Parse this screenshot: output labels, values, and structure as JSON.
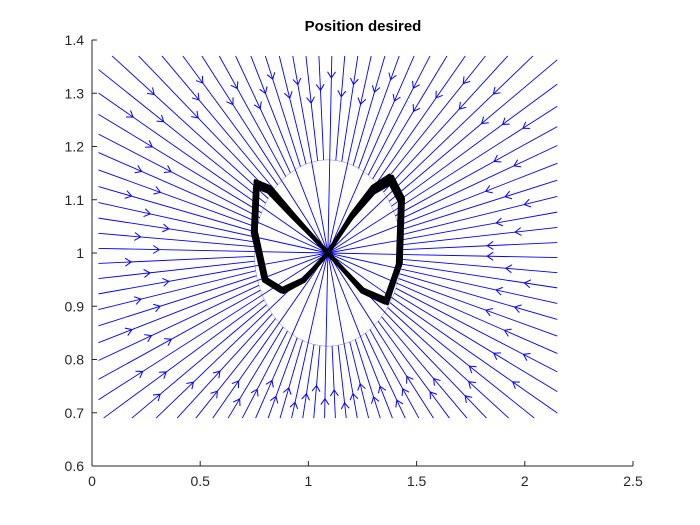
{
  "chart_data": {
    "type": "line",
    "title": "Position desired",
    "xlabel": "",
    "ylabel": "",
    "xlim": [
      0,
      2.5
    ],
    "ylim": [
      0.6,
      1.4
    ],
    "x_ticks": [
      "0",
      "0.5",
      "1",
      "1.5",
      "2",
      "2.5"
    ],
    "y_ticks": [
      "0.6",
      "0.7",
      "0.8",
      "0.9",
      "1",
      "1.1",
      "1.2",
      "1.3",
      "1.4"
    ],
    "grid": false,
    "box": false,
    "streamlines": {
      "color": "#0000ff",
      "center": [
        1.09,
        1.0
      ],
      "region": {
        "x": [
          0.03,
          2.15
        ],
        "y": [
          0.69,
          1.37
        ]
      },
      "clear_ellipse_semi_axes": [
        0.34,
        0.175
      ],
      "arrow_direction": "toward-center"
    },
    "series": [
      {
        "style": "figure-eight trajectory",
        "color": "#000000",
        "x": [
          1.09,
          1.2,
          1.3,
          1.38,
          1.43,
          1.42,
          1.36,
          1.25,
          1.09,
          0.93,
          0.82,
          0.76,
          0.75,
          0.8,
          0.88,
          0.98,
          1.09
        ],
        "y": [
          1.0,
          1.07,
          1.12,
          1.14,
          1.1,
          0.98,
          0.91,
          0.93,
          1.0,
          1.07,
          1.12,
          1.13,
          1.04,
          0.95,
          0.93,
          0.95,
          1.0
        ]
      }
    ]
  }
}
